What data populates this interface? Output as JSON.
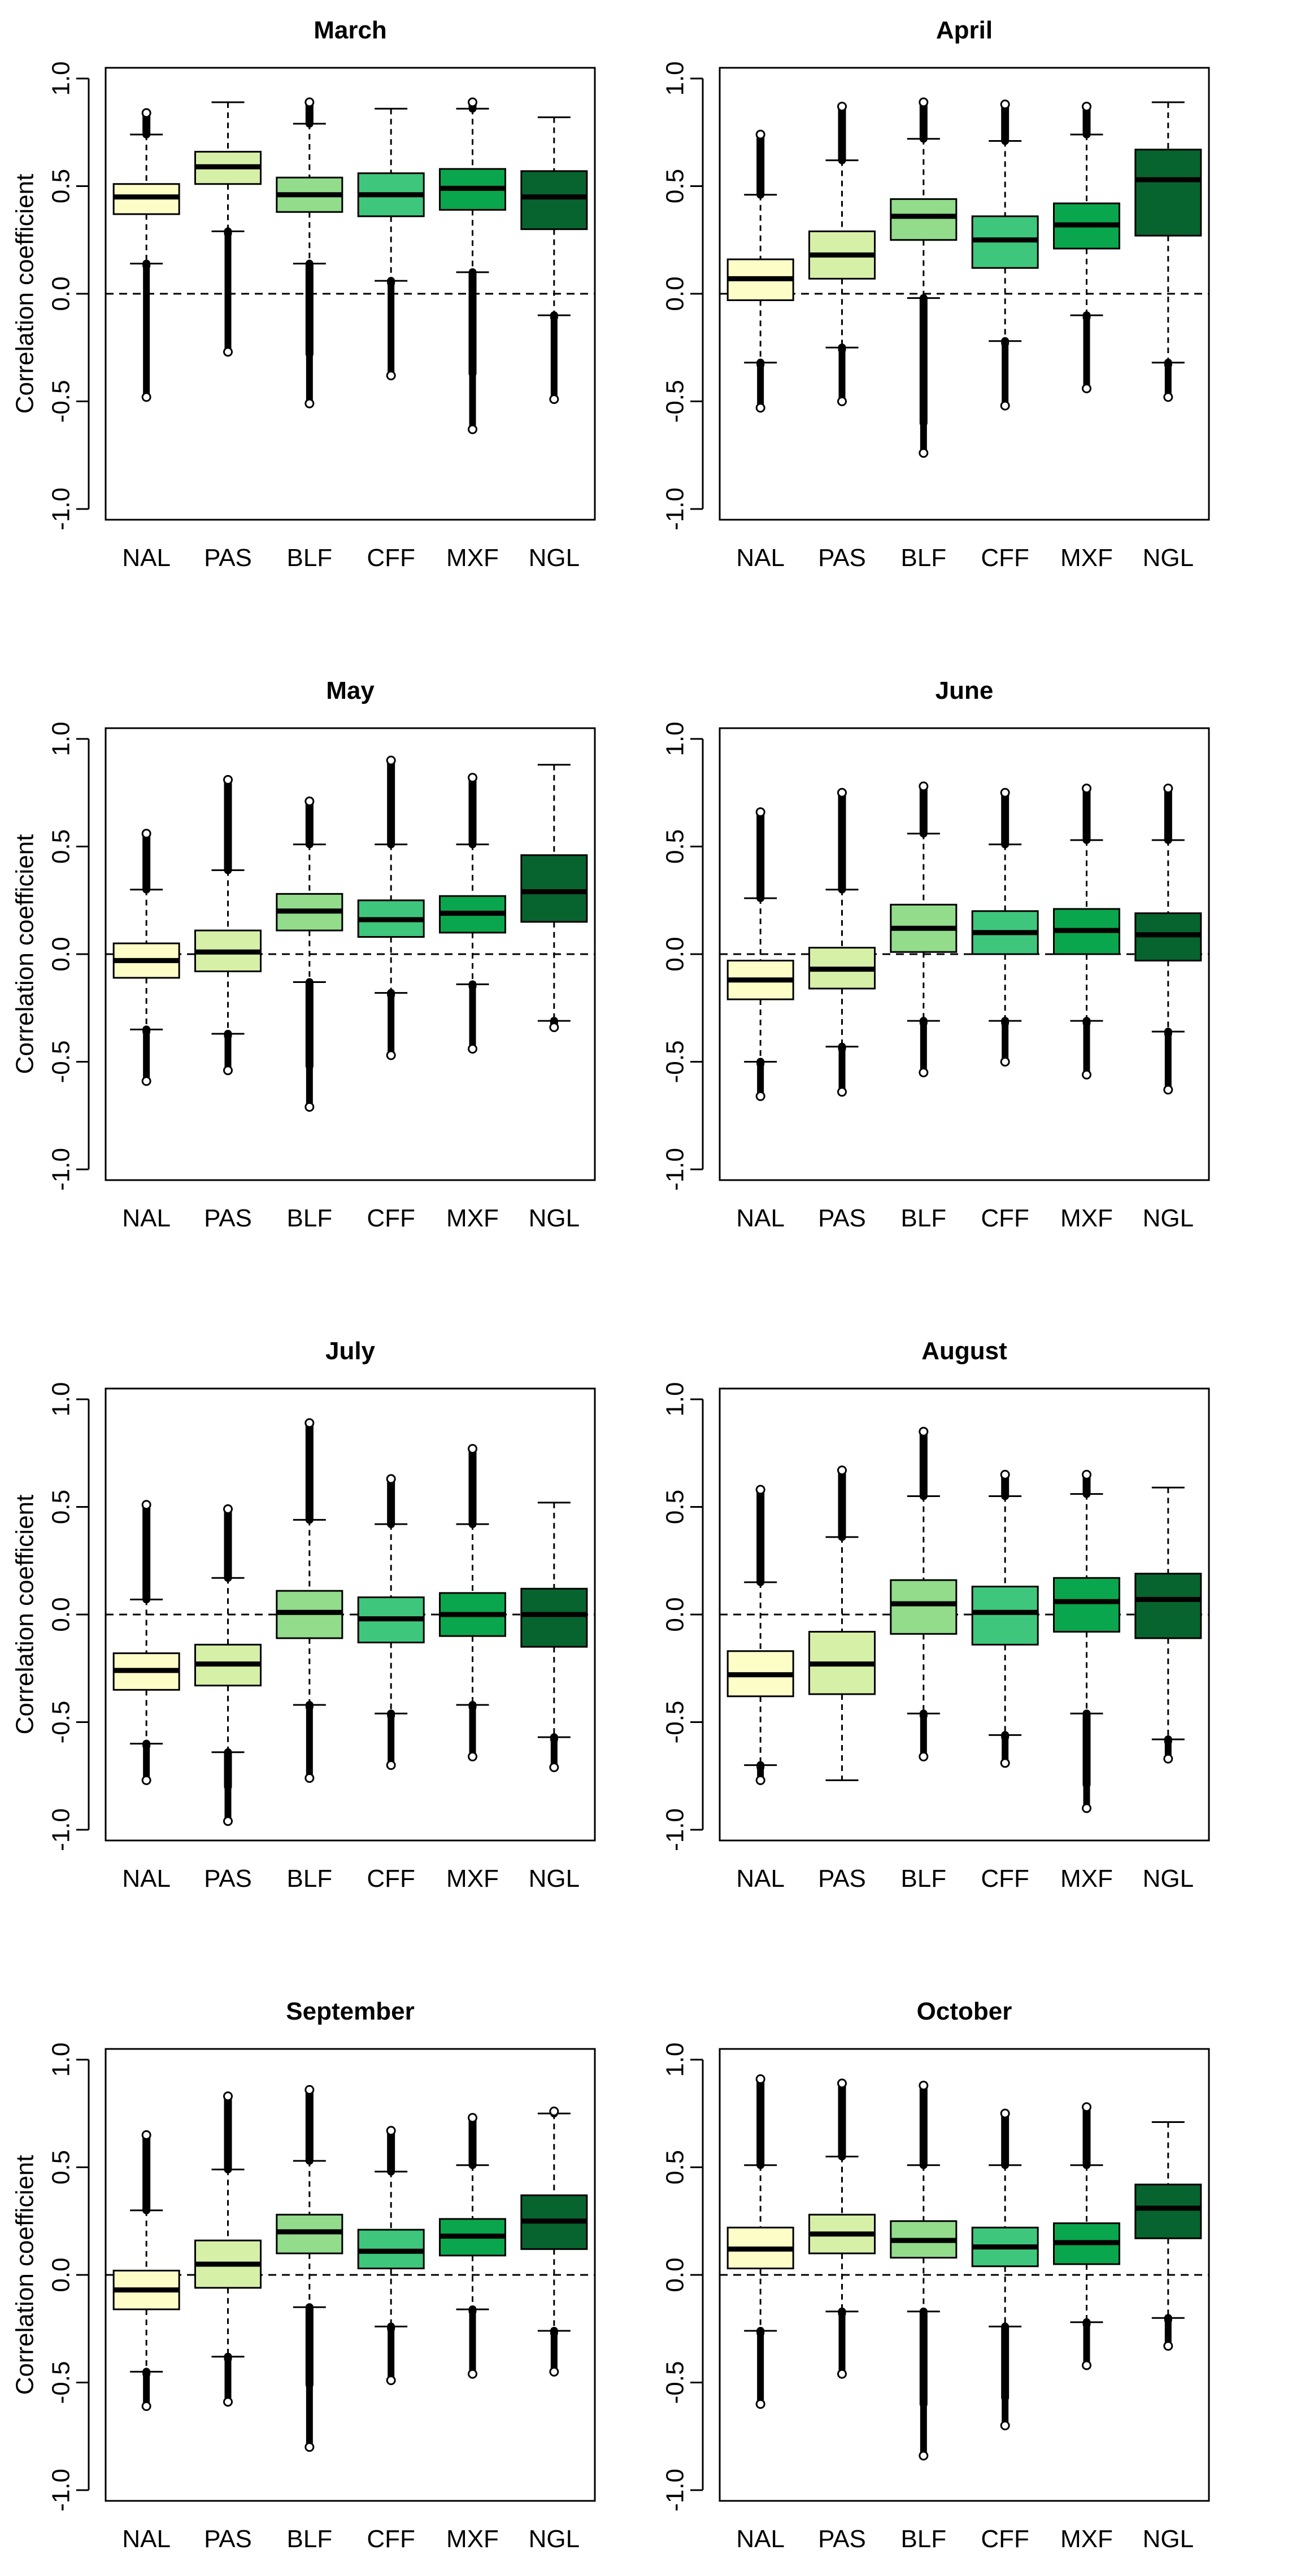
{
  "figure": {
    "y_axis_label": "Correlation coefficient",
    "categories": [
      "NAL",
      "PAS",
      "BLF",
      "CFF",
      "MXF",
      "NGL"
    ],
    "category_colors": [
      "#fdfdc8",
      "#d6f0a8",
      "#92dc8c",
      "#3ec77c",
      "#0aa64d",
      "#08642f"
    ],
    "ylim": [
      -1.05,
      1.05
    ],
    "yticks": [
      -1.0,
      -0.5,
      0.0,
      0.5,
      1.0
    ],
    "ytick_labels": [
      "-1.0",
      "-0.5",
      "0.0",
      "0.5",
      "1.0"
    ],
    "reference_line": 0.0
  },
  "chart_data": [
    {
      "type": "boxplot",
      "title": "March",
      "categories": [
        "NAL",
        "PAS",
        "BLF",
        "CFF",
        "MXF",
        "NGL"
      ],
      "xlabel": "",
      "ylabel": "Correlation coefficient",
      "ylim": [
        -1.05,
        1.05
      ],
      "boxes": [
        {
          "name": "NAL",
          "whisker_low": 0.14,
          "q1": 0.37,
          "median": 0.45,
          "q3": 0.51,
          "whisker_high": 0.74,
          "outliers_low": [
            0.13,
            -0.48
          ],
          "outliers_high": [
            0.76,
            0.84
          ]
        },
        {
          "name": "PAS",
          "whisker_low": 0.29,
          "q1": 0.51,
          "median": 0.59,
          "q3": 0.66,
          "whisker_high": 0.89,
          "outliers_low": [
            0.28,
            -0.27
          ],
          "outliers_high": []
        },
        {
          "name": "BLF",
          "whisker_low": 0.14,
          "q1": 0.38,
          "median": 0.46,
          "q3": 0.54,
          "whisker_high": 0.79,
          "outliers_low": [
            0.13,
            -0.28,
            -0.51
          ],
          "outliers_high": [
            0.8,
            0.89
          ]
        },
        {
          "name": "CFF",
          "whisker_low": 0.06,
          "q1": 0.36,
          "median": 0.46,
          "q3": 0.56,
          "whisker_high": 0.86,
          "outliers_low": [
            0.05,
            -0.38
          ],
          "outliers_high": []
        },
        {
          "name": "MXF",
          "whisker_low": 0.1,
          "q1": 0.39,
          "median": 0.49,
          "q3": 0.58,
          "whisker_high": 0.86,
          "outliers_low": [
            0.09,
            -0.37,
            -0.63
          ],
          "outliers_high": [
            0.87,
            0.89
          ]
        },
        {
          "name": "NGL",
          "whisker_low": -0.1,
          "q1": 0.3,
          "median": 0.45,
          "q3": 0.57,
          "whisker_high": 0.82,
          "outliers_low": [
            -0.11,
            -0.49
          ],
          "outliers_high": []
        }
      ]
    },
    {
      "type": "boxplot",
      "title": "April",
      "categories": [
        "NAL",
        "PAS",
        "BLF",
        "CFF",
        "MXF",
        "NGL"
      ],
      "xlabel": "",
      "ylabel": "",
      "ylim": [
        -1.05,
        1.05
      ],
      "boxes": [
        {
          "name": "NAL",
          "whisker_low": -0.32,
          "q1": -0.03,
          "median": 0.07,
          "q3": 0.16,
          "whisker_high": 0.46,
          "outliers_low": [
            -0.33,
            -0.53
          ],
          "outliers_high": [
            0.47,
            0.74
          ]
        },
        {
          "name": "PAS",
          "whisker_low": -0.25,
          "q1": 0.07,
          "median": 0.18,
          "q3": 0.29,
          "whisker_high": 0.62,
          "outliers_low": [
            -0.26,
            -0.5
          ],
          "outliers_high": [
            0.63,
            0.87
          ]
        },
        {
          "name": "BLF",
          "whisker_low": -0.02,
          "q1": 0.25,
          "median": 0.36,
          "q3": 0.44,
          "whisker_high": 0.72,
          "outliers_low": [
            -0.03,
            -0.6,
            -0.74
          ],
          "outliers_high": [
            0.73,
            0.89
          ]
        },
        {
          "name": "CFF",
          "whisker_low": -0.22,
          "q1": 0.12,
          "median": 0.25,
          "q3": 0.36,
          "whisker_high": 0.71,
          "outliers_low": [
            -0.23,
            -0.52
          ],
          "outliers_high": [
            0.72,
            0.88
          ]
        },
        {
          "name": "MXF",
          "whisker_low": -0.1,
          "q1": 0.21,
          "median": 0.32,
          "q3": 0.42,
          "whisker_high": 0.74,
          "outliers_low": [
            -0.11,
            -0.44
          ],
          "outliers_high": [
            0.75,
            0.87
          ]
        },
        {
          "name": "NGL",
          "whisker_low": -0.32,
          "q1": 0.27,
          "median": 0.53,
          "q3": 0.67,
          "whisker_high": 0.89,
          "outliers_low": [
            -0.33,
            -0.48
          ],
          "outliers_high": []
        }
      ]
    },
    {
      "type": "boxplot",
      "title": "May",
      "categories": [
        "NAL",
        "PAS",
        "BLF",
        "CFF",
        "MXF",
        "NGL"
      ],
      "xlabel": "",
      "ylabel": "Correlation coefficient",
      "ylim": [
        -1.05,
        1.05
      ],
      "boxes": [
        {
          "name": "NAL",
          "whisker_low": -0.35,
          "q1": -0.11,
          "median": -0.03,
          "q3": 0.05,
          "whisker_high": 0.3,
          "outliers_low": [
            -0.36,
            -0.59
          ],
          "outliers_high": [
            0.31,
            0.56
          ]
        },
        {
          "name": "PAS",
          "whisker_low": -0.37,
          "q1": -0.08,
          "median": 0.01,
          "q3": 0.11,
          "whisker_high": 0.39,
          "outliers_low": [
            -0.38,
            -0.54
          ],
          "outliers_high": [
            0.4,
            0.81
          ]
        },
        {
          "name": "BLF",
          "whisker_low": -0.13,
          "q1": 0.11,
          "median": 0.2,
          "q3": 0.28,
          "whisker_high": 0.51,
          "outliers_low": [
            -0.14,
            -0.52,
            -0.71
          ],
          "outliers_high": [
            0.52,
            0.71
          ]
        },
        {
          "name": "CFF",
          "whisker_low": -0.18,
          "q1": 0.08,
          "median": 0.16,
          "q3": 0.25,
          "whisker_high": 0.51,
          "outliers_low": [
            -0.19,
            -0.47
          ],
          "outliers_high": [
            0.52,
            0.9
          ]
        },
        {
          "name": "MXF",
          "whisker_low": -0.14,
          "q1": 0.1,
          "median": 0.19,
          "q3": 0.27,
          "whisker_high": 0.51,
          "outliers_low": [
            -0.15,
            -0.44
          ],
          "outliers_high": [
            0.52,
            0.82
          ]
        },
        {
          "name": "NGL",
          "whisker_low": -0.31,
          "q1": 0.15,
          "median": 0.29,
          "q3": 0.46,
          "whisker_high": 0.88,
          "outliers_low": [
            -0.32,
            -0.34
          ],
          "outliers_high": []
        }
      ]
    },
    {
      "type": "boxplot",
      "title": "June",
      "categories": [
        "NAL",
        "PAS",
        "BLF",
        "CFF",
        "MXF",
        "NGL"
      ],
      "xlabel": "",
      "ylabel": "",
      "ylim": [
        -1.05,
        1.05
      ],
      "boxes": [
        {
          "name": "NAL",
          "whisker_low": -0.5,
          "q1": -0.21,
          "median": -0.12,
          "q3": -0.03,
          "whisker_high": 0.26,
          "outliers_low": [
            -0.51,
            -0.66
          ],
          "outliers_high": [
            0.27,
            0.66
          ]
        },
        {
          "name": "PAS",
          "whisker_low": -0.43,
          "q1": -0.16,
          "median": -0.07,
          "q3": 0.03,
          "whisker_high": 0.3,
          "outliers_low": [
            -0.44,
            -0.64
          ],
          "outliers_high": [
            0.31,
            0.65,
            0.75
          ]
        },
        {
          "name": "BLF",
          "whisker_low": -0.31,
          "q1": 0.01,
          "median": 0.12,
          "q3": 0.23,
          "whisker_high": 0.56,
          "outliers_low": [
            -0.32,
            -0.55
          ],
          "outliers_high": [
            0.57,
            0.78
          ]
        },
        {
          "name": "CFF",
          "whisker_low": -0.31,
          "q1": 0.0,
          "median": 0.1,
          "q3": 0.2,
          "whisker_high": 0.51,
          "outliers_low": [
            -0.32,
            -0.5
          ],
          "outliers_high": [
            0.52,
            0.75
          ]
        },
        {
          "name": "MXF",
          "whisker_low": -0.31,
          "q1": 0.0,
          "median": 0.11,
          "q3": 0.21,
          "whisker_high": 0.53,
          "outliers_low": [
            -0.32,
            -0.56
          ],
          "outliers_high": [
            0.54,
            0.77
          ]
        },
        {
          "name": "NGL",
          "whisker_low": -0.36,
          "q1": -0.03,
          "median": 0.09,
          "q3": 0.19,
          "whisker_high": 0.53,
          "outliers_low": [
            -0.37,
            -0.63
          ],
          "outliers_high": [
            0.54,
            0.77
          ]
        }
      ]
    },
    {
      "type": "boxplot",
      "title": "July",
      "categories": [
        "NAL",
        "PAS",
        "BLF",
        "CFF",
        "MXF",
        "NGL"
      ],
      "xlabel": "",
      "ylabel": "Correlation coefficient",
      "ylim": [
        -1.05,
        1.05
      ],
      "boxes": [
        {
          "name": "NAL",
          "whisker_low": -0.6,
          "q1": -0.35,
          "median": -0.26,
          "q3": -0.18,
          "whisker_high": 0.07,
          "outliers_low": [
            -0.61,
            -0.77
          ],
          "outliers_high": [
            0.08,
            0.51
          ]
        },
        {
          "name": "PAS",
          "whisker_low": -0.64,
          "q1": -0.33,
          "median": -0.23,
          "q3": -0.14,
          "whisker_high": 0.17,
          "outliers_low": [
            -0.65,
            -0.8,
            -0.96
          ],
          "outliers_high": [
            0.18,
            0.49
          ]
        },
        {
          "name": "BLF",
          "whisker_low": -0.42,
          "q1": -0.11,
          "median": 0.01,
          "q3": 0.11,
          "whisker_high": 0.44,
          "outliers_low": [
            -0.43,
            -0.76
          ],
          "outliers_high": [
            0.45,
            0.58,
            0.89
          ]
        },
        {
          "name": "CFF",
          "whisker_low": -0.46,
          "q1": -0.13,
          "median": -0.02,
          "q3": 0.08,
          "whisker_high": 0.42,
          "outliers_low": [
            -0.47,
            -0.7
          ],
          "outliers_high": [
            0.43,
            0.63
          ]
        },
        {
          "name": "MXF",
          "whisker_low": -0.42,
          "q1": -0.1,
          "median": 0.0,
          "q3": 0.1,
          "whisker_high": 0.42,
          "outliers_low": [
            -0.43,
            -0.66
          ],
          "outliers_high": [
            0.43,
            0.63,
            0.77
          ]
        },
        {
          "name": "NGL",
          "whisker_low": -0.57,
          "q1": -0.15,
          "median": 0.0,
          "q3": 0.12,
          "whisker_high": 0.52,
          "outliers_low": [
            -0.58,
            -0.71
          ],
          "outliers_high": []
        }
      ]
    },
    {
      "type": "boxplot",
      "title": "August",
      "categories": [
        "NAL",
        "PAS",
        "BLF",
        "CFF",
        "MXF",
        "NGL"
      ],
      "xlabel": "",
      "ylabel": "",
      "ylim": [
        -1.05,
        1.05
      ],
      "boxes": [
        {
          "name": "NAL",
          "whisker_low": -0.7,
          "q1": -0.38,
          "median": -0.28,
          "q3": -0.17,
          "whisker_high": 0.15,
          "outliers_low": [
            -0.71,
            -0.77
          ],
          "outliers_high": [
            0.16,
            0.49,
            0.58
          ]
        },
        {
          "name": "PAS",
          "whisker_low": -0.77,
          "q1": -0.37,
          "median": -0.23,
          "q3": -0.08,
          "whisker_high": 0.36,
          "outliers_low": [],
          "outliers_high": [
            0.37,
            0.59,
            0.67
          ]
        },
        {
          "name": "BLF",
          "whisker_low": -0.46,
          "q1": -0.09,
          "median": 0.05,
          "q3": 0.16,
          "whisker_high": 0.55,
          "outliers_low": [
            -0.47,
            -0.66
          ],
          "outliers_high": [
            0.56,
            0.66,
            0.74,
            0.85
          ]
        },
        {
          "name": "CFF",
          "whisker_low": -0.56,
          "q1": -0.14,
          "median": 0.01,
          "q3": 0.13,
          "whisker_high": 0.55,
          "outliers_low": [
            -0.57,
            -0.69
          ],
          "outliers_high": [
            0.56,
            0.65
          ]
        },
        {
          "name": "MXF",
          "whisker_low": -0.46,
          "q1": -0.08,
          "median": 0.06,
          "q3": 0.17,
          "whisker_high": 0.56,
          "outliers_low": [
            -0.47,
            -0.79,
            -0.9
          ],
          "outliers_high": [
            0.57,
            0.65
          ]
        },
        {
          "name": "NGL",
          "whisker_low": -0.58,
          "q1": -0.11,
          "median": 0.07,
          "q3": 0.19,
          "whisker_high": 0.59,
          "outliers_low": [
            -0.59,
            -0.67
          ],
          "outliers_high": []
        }
      ]
    },
    {
      "type": "boxplot",
      "title": "September",
      "categories": [
        "NAL",
        "PAS",
        "BLF",
        "CFF",
        "MXF",
        "NGL"
      ],
      "xlabel": "",
      "ylabel": "Correlation coefficient",
      "ylim": [
        -1.05,
        1.05
      ],
      "boxes": [
        {
          "name": "NAL",
          "whisker_low": -0.45,
          "q1": -0.16,
          "median": -0.07,
          "q3": 0.02,
          "whisker_high": 0.3,
          "outliers_low": [
            -0.46,
            -0.61
          ],
          "outliers_high": [
            0.31,
            0.65
          ]
        },
        {
          "name": "PAS",
          "whisker_low": -0.38,
          "q1": -0.06,
          "median": 0.05,
          "q3": 0.16,
          "whisker_high": 0.49,
          "outliers_low": [
            -0.39,
            -0.59
          ],
          "outliers_high": [
            0.5,
            0.69,
            0.83
          ]
        },
        {
          "name": "BLF",
          "whisker_low": -0.15,
          "q1": 0.1,
          "median": 0.2,
          "q3": 0.28,
          "whisker_high": 0.53,
          "outliers_low": [
            -0.16,
            -0.51,
            -0.8
          ],
          "outliers_high": [
            0.54,
            0.86
          ]
        },
        {
          "name": "CFF",
          "whisker_low": -0.24,
          "q1": 0.03,
          "median": 0.11,
          "q3": 0.21,
          "whisker_high": 0.48,
          "outliers_low": [
            -0.25,
            -0.49
          ],
          "outliers_high": [
            0.49,
            0.67
          ]
        },
        {
          "name": "MXF",
          "whisker_low": -0.16,
          "q1": 0.09,
          "median": 0.18,
          "q3": 0.26,
          "whisker_high": 0.51,
          "outliers_low": [
            -0.17,
            -0.46
          ],
          "outliers_high": [
            0.52,
            0.73
          ]
        },
        {
          "name": "NGL",
          "whisker_low": -0.26,
          "q1": 0.12,
          "median": 0.25,
          "q3": 0.37,
          "whisker_high": 0.75,
          "outliers_low": [
            -0.27,
            -0.45
          ],
          "outliers_high": [
            0.76
          ]
        }
      ]
    },
    {
      "type": "boxplot",
      "title": "October",
      "categories": [
        "NAL",
        "PAS",
        "BLF",
        "CFF",
        "MXF",
        "NGL"
      ],
      "xlabel": "",
      "ylabel": "",
      "ylim": [
        -1.05,
        1.05
      ],
      "boxes": [
        {
          "name": "NAL",
          "whisker_low": -0.26,
          "q1": 0.03,
          "median": 0.12,
          "q3": 0.22,
          "whisker_high": 0.51,
          "outliers_low": [
            -0.27,
            -0.6
          ],
          "outliers_high": [
            0.52,
            0.91
          ]
        },
        {
          "name": "PAS",
          "whisker_low": -0.17,
          "q1": 0.1,
          "median": 0.19,
          "q3": 0.28,
          "whisker_high": 0.55,
          "outliers_low": [
            -0.18,
            -0.46
          ],
          "outliers_high": [
            0.56,
            0.89
          ]
        },
        {
          "name": "BLF",
          "whisker_low": -0.17,
          "q1": 0.08,
          "median": 0.16,
          "q3": 0.25,
          "whisker_high": 0.51,
          "outliers_low": [
            -0.18,
            -0.39,
            -0.6,
            -0.84
          ],
          "outliers_high": [
            0.52,
            0.77,
            0.88
          ]
        },
        {
          "name": "CFF",
          "whisker_low": -0.24,
          "q1": 0.04,
          "median": 0.13,
          "q3": 0.22,
          "whisker_high": 0.51,
          "outliers_low": [
            -0.25,
            -0.57,
            -0.7
          ],
          "outliers_high": [
            0.52,
            0.75
          ]
        },
        {
          "name": "MXF",
          "whisker_low": -0.22,
          "q1": 0.05,
          "median": 0.15,
          "q3": 0.24,
          "whisker_high": 0.51,
          "outliers_low": [
            -0.23,
            -0.42
          ],
          "outliers_high": [
            0.52,
            0.78
          ]
        },
        {
          "name": "NGL",
          "whisker_low": -0.2,
          "q1": 0.17,
          "median": 0.31,
          "q3": 0.42,
          "whisker_high": 0.71,
          "outliers_low": [
            -0.21,
            -0.33
          ],
          "outliers_high": []
        }
      ]
    }
  ]
}
